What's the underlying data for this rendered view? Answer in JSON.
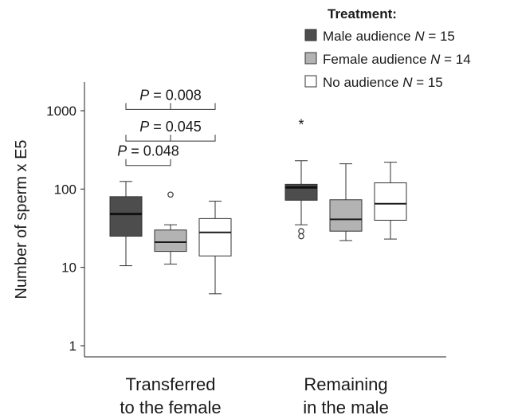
{
  "chart_data": {
    "type": "box",
    "ylabel": "Number of sperm x E5",
    "yscale": "log",
    "ylim": [
      0.7,
      1500
    ],
    "yticks": [
      {
        "value": 1,
        "label": "1"
      },
      {
        "value": 10,
        "label": "10"
      },
      {
        "value": 100,
        "label": "100"
      },
      {
        "value": 1000,
        "label": "1000"
      }
    ],
    "legend": {
      "title": "Treatment:",
      "position": "top-right",
      "entries": [
        {
          "prefix": "Male audience ",
          "italic": "N",
          "suffix": " = 15",
          "color": "#4d4d4d"
        },
        {
          "prefix": "Female audience ",
          "italic": "N",
          "suffix": " = 14",
          "color": "#b3b3b3"
        },
        {
          "prefix": "No audience ",
          "italic": "N",
          "suffix": " = 15",
          "color": "#ffffff"
        }
      ]
    },
    "groups": [
      {
        "label_lines": [
          "Transferred",
          "to the female"
        ]
      },
      {
        "label_lines": [
          "Remaining",
          "in the male"
        ]
      }
    ],
    "boxes": [
      {
        "group": 0,
        "series": 0,
        "min": 10.5,
        "q1": 25,
        "median": 48,
        "q3": 80,
        "max": 125,
        "outliers": [],
        "extremes": []
      },
      {
        "group": 0,
        "series": 1,
        "min": 11,
        "q1": 16,
        "median": 21,
        "q3": 30,
        "max": 35,
        "outliers": [
          85
        ],
        "extremes": []
      },
      {
        "group": 0,
        "series": 2,
        "min": 4.6,
        "q1": 14,
        "median": 28,
        "q3": 42,
        "max": 70,
        "outliers": [],
        "extremes": []
      },
      {
        "group": 1,
        "series": 0,
        "min": 35,
        "q1": 72,
        "median": 105,
        "q3": 115,
        "max": 230,
        "outliers": [
          29,
          25
        ],
        "extremes": [
          710
        ]
      },
      {
        "group": 1,
        "series": 1,
        "min": 22,
        "q1": 29,
        "median": 41,
        "q3": 73,
        "max": 210,
        "outliers": [],
        "extremes": []
      },
      {
        "group": 1,
        "series": 2,
        "min": 23,
        "q1": 40,
        "median": 65,
        "q3": 120,
        "max": 220,
        "outliers": [],
        "extremes": []
      }
    ],
    "comparisons": [
      {
        "group": 0,
        "from_series": 0,
        "to_series": 2,
        "y": 1040,
        "italic": "P",
        "text": " = 0.008"
      },
      {
        "group": 0,
        "from_series": 0,
        "to_series": 2,
        "y": 410,
        "italic": "P",
        "text": " = 0.045"
      },
      {
        "group": 0,
        "from_series": 0,
        "to_series": 1,
        "y": 200,
        "italic": "P",
        "text": " = 0.048"
      }
    ]
  }
}
